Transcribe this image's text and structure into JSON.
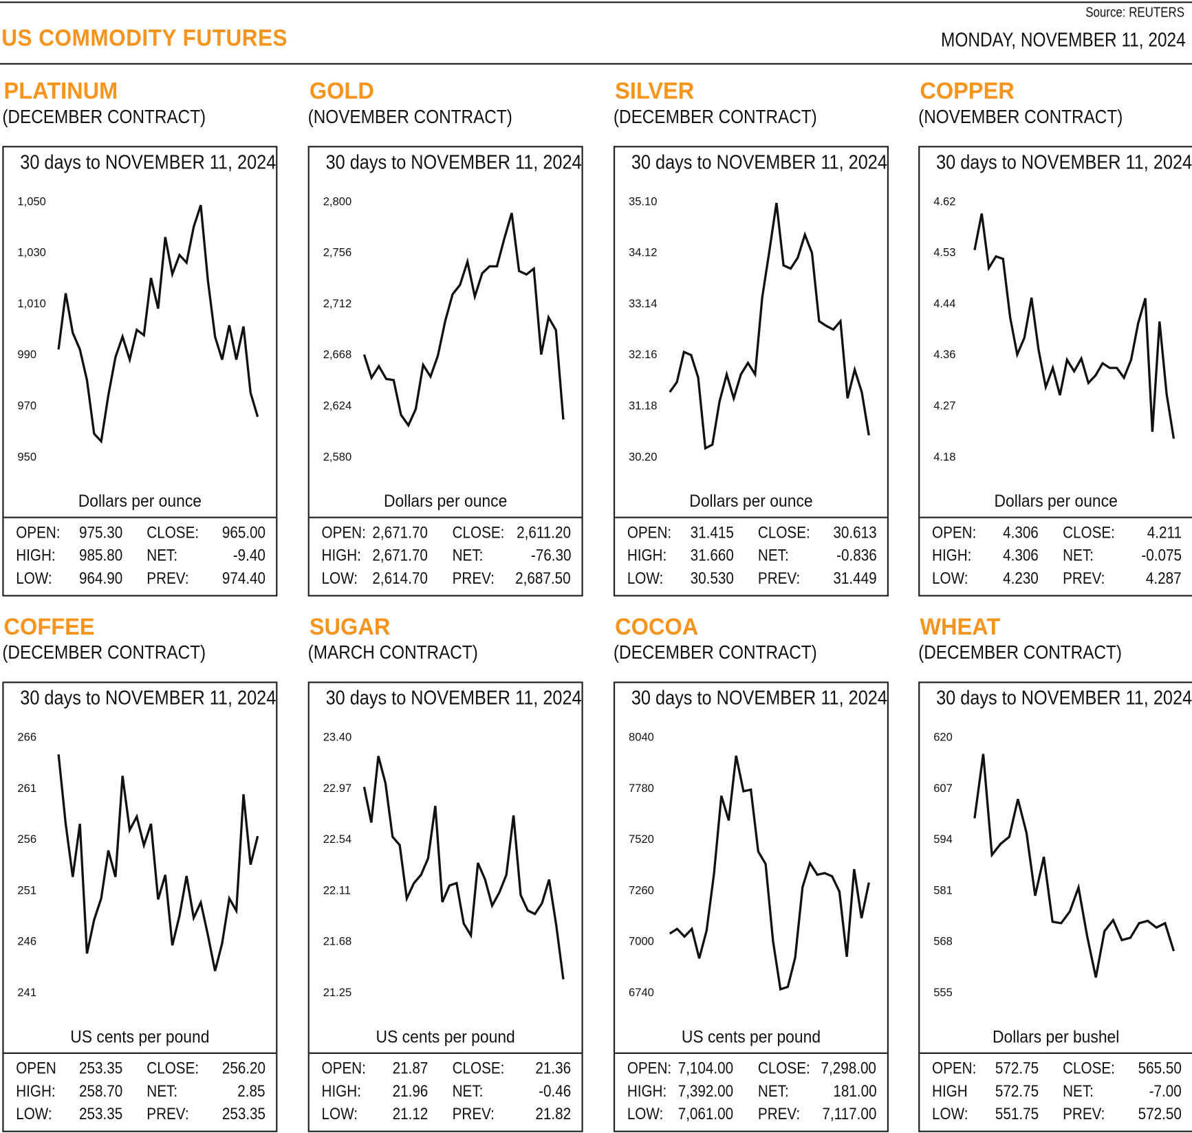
{
  "header": {
    "title": "US COMMODITY FUTURES",
    "source": "Source: REUTERS",
    "date": "MONDAY, NOVEMBER 11, 2024"
  },
  "colors": {
    "accent": "#f7941d",
    "line": "#111111"
  },
  "chart_data": [
    {
      "type": "line",
      "name": "PLATINUM",
      "contract": "(DECEMBER CONTRACT)",
      "title": "30 days to NOVEMBER 11, 2024",
      "ylabel": "Dollars per ounce",
      "yticks": [
        "1,050",
        "1,030",
        "1,010",
        "990",
        "970",
        "950"
      ],
      "ylim": [
        950,
        1050
      ],
      "grid": false,
      "values": [
        992,
        1014,
        998.5,
        992,
        980,
        959,
        956,
        974,
        989,
        997,
        988,
        999.7,
        997.6,
        1020,
        1008,
        1036,
        1021.5,
        1029,
        1026,
        1040,
        1048.5,
        1019,
        997,
        988,
        1001.5,
        988,
        1001,
        975,
        965.6
      ],
      "stats": {
        "OPEN:": "975.30",
        "HIGH:": "985.80",
        "LOW:": "964.90",
        "CLOSE:": "965.00",
        "NET:": "-9.40",
        "PREV:": "974.40"
      },
      "stat_labels": [
        "OPEN:",
        "HIGH:",
        "LOW:",
        "CLOSE:",
        "NET:",
        "PREV:"
      ]
    },
    {
      "type": "line",
      "name": "GOLD",
      "contract": "(NOVEMBER CONTRACT)",
      "title": "30 days to NOVEMBER 11, 2024",
      "ylabel": "Dollars per ounce",
      "yticks": [
        "2,800",
        "2,756",
        "2,712",
        "2,668",
        "2,624",
        "2,580"
      ],
      "ylim": [
        2580,
        2800
      ],
      "grid": false,
      "values": [
        2668,
        2648,
        2658,
        2647,
        2646,
        2616,
        2607,
        2621,
        2659,
        2649,
        2667,
        2697,
        2720,
        2728,
        2748,
        2718,
        2738,
        2744,
        2744,
        2768,
        2790,
        2740,
        2737,
        2742,
        2668,
        2700,
        2689,
        2612
      ],
      "stats": {
        "OPEN:": "2,671.70",
        "HIGH:": "2,671.70",
        "LOW:": "2,614.70",
        "CLOSE:": "2,611.20",
        "NET:": "-76.30",
        "PREV:": "2,687.50"
      },
      "stat_labels": [
        "OPEN:",
        "HIGH:",
        "LOW:",
        "CLOSE:",
        "NET:",
        "PREV:"
      ]
    },
    {
      "type": "line",
      "name": "SILVER",
      "contract": "(DECEMBER CONTRACT)",
      "title": "30 days to NOVEMBER 11, 2024",
      "ylabel": "Dollars per ounce",
      "yticks": [
        "35.10",
        "34.12",
        "33.14",
        "32.16",
        "31.18",
        "30.20"
      ],
      "ylim": [
        30.2,
        35.1
      ],
      "grid": false,
      "values": [
        31.44,
        31.63,
        32.21,
        32.15,
        31.72,
        30.36,
        30.43,
        31.26,
        31.78,
        31.32,
        31.78,
        32.0,
        31.78,
        33.25,
        34.14,
        35.07,
        33.87,
        33.81,
        34.02,
        34.46,
        34.11,
        32.8,
        32.71,
        32.64,
        32.8,
        31.32,
        31.87,
        31.44,
        30.61
      ],
      "stats": {
        "OPEN:": "31.415",
        "HIGH:": "31.660",
        "LOW:": "30.530",
        "CLOSE:": "30.613",
        "NET:": "-0.836",
        "PREV:": "31.449"
      },
      "stat_labels": [
        "OPEN:",
        "HIGH:",
        "LOW:",
        "CLOSE:",
        "NET:",
        "PREV:"
      ]
    },
    {
      "type": "line",
      "name": "COPPER",
      "contract": "(NOVEMBER CONTRACT)",
      "title": "30 days to NOVEMBER 11, 2024",
      "ylabel": "Dollars per ounce",
      "yticks": [
        "4.62",
        "4.53",
        "4.44",
        "4.36",
        "4.27",
        "4.18"
      ],
      "ylim": [
        4.18,
        4.62
      ],
      "grid": false,
      "values": [
        4.536,
        4.599,
        4.505,
        4.525,
        4.521,
        4.42,
        4.356,
        4.385,
        4.454,
        4.364,
        4.3,
        4.333,
        4.286,
        4.347,
        4.327,
        4.349,
        4.307,
        4.32,
        4.341,
        4.333,
        4.333,
        4.316,
        4.347,
        4.41,
        4.453,
        4.223,
        4.413,
        4.288,
        4.211
      ],
      "stats": {
        "OPEN:": "4.306",
        "HIGH:": "4.306",
        "LOW:": "4.230",
        "CLOSE:": "4.211",
        "NET:": "-0.075",
        "PREV:": "4.287"
      },
      "stat_labels": [
        "OPEN:",
        "HIGH:",
        "LOW:",
        "CLOSE:",
        "NET:",
        "PREV:"
      ]
    },
    {
      "type": "line",
      "name": "COFFEE",
      "contract": "(DECEMBER CONTRACT)",
      "title": "30 days to NOVEMBER 11, 2024",
      "ylabel": "US cents per pound",
      "yticks": [
        "266",
        "261",
        "256",
        "251",
        "246",
        "241"
      ],
      "ylim": [
        241,
        266
      ],
      "grid": false,
      "values": [
        264.3,
        257.5,
        252.3,
        257.5,
        244.8,
        248.1,
        250.2,
        254.9,
        252.3,
        262.2,
        256.9,
        258.2,
        255.4,
        257.5,
        250.1,
        252.5,
        245.6,
        248.5,
        252.4,
        248.3,
        249.8,
        246.6,
        243.1,
        245.8,
        250.2,
        249.0,
        260.4,
        253.5,
        256.3
      ],
      "stats": {
        "OPEN": "253.35",
        "HIGH:": "258.70",
        "LOW:": "253.35",
        "CLOSE:": "256.20",
        "NET:": "2.85",
        "PREV:": "253.35"
      },
      "stat_labels": [
        "OPEN",
        "HIGH:",
        "LOW:",
        "CLOSE:",
        "NET:",
        "PREV:"
      ]
    },
    {
      "type": "line",
      "name": "SUGAR",
      "contract": "(MARCH CONTRACT)",
      "title": "30 days to NOVEMBER 11, 2024",
      "ylabel": "US cents per pound",
      "yticks": [
        "23.40",
        "22.97",
        "22.54",
        "22.11",
        "21.68",
        "21.25"
      ],
      "ylim": [
        21.25,
        23.4
      ],
      "grid": false,
      "values": [
        22.98,
        22.68,
        23.24,
        23.01,
        22.56,
        22.49,
        22.04,
        22.17,
        22.24,
        22.38,
        22.82,
        22.01,
        22.15,
        22.17,
        21.83,
        21.73,
        22.34,
        22.2,
        21.98,
        22.09,
        22.24,
        22.74,
        22.07,
        21.94,
        21.91,
        22.0,
        22.2,
        21.82,
        21.36
      ],
      "stats": {
        "OPEN:": "21.87",
        "HIGH:": "21.96",
        "LOW:": "21.12",
        "CLOSE:": "21.36",
        "NET:": "-0.46",
        "PREV:": "21.82"
      },
      "stat_labels": [
        "OPEN:",
        "HIGH:",
        "LOW:",
        "CLOSE:",
        "NET:",
        "PREV:"
      ]
    },
    {
      "type": "line",
      "name": "COCOA",
      "contract": "(DECEMBER CONTRACT)",
      "title": "30 days to NOVEMBER 11, 2024",
      "ylabel": "US cents per pound",
      "yticks": [
        "8040",
        "7780",
        "7520",
        "7260",
        "7000",
        "6740"
      ],
      "ylim": [
        6740,
        8040
      ],
      "grid": false,
      "values": [
        7039,
        7063,
        7024,
        7063,
        6913,
        7055,
        7343,
        7741,
        7615,
        7945,
        7764,
        7772,
        7457,
        7394,
        7000,
        6756,
        6768,
        6917,
        7276,
        7398,
        7339,
        7347,
        7331,
        7253,
        6921,
        7367,
        7118,
        7299
      ],
      "stats": {
        "OPEN:": "7,104.00",
        "HIGH:": "7,392.00",
        "LOW:": "7,061.00",
        "CLOSE:": "7,298.00",
        "NET:": "181.00",
        "PREV:": "7,117.00"
      },
      "stat_labels": [
        "OPEN:",
        "HIGH:",
        "LOW:",
        "CLOSE:",
        "NET:",
        "PREV:"
      ]
    },
    {
      "type": "line",
      "name": "WHEAT",
      "contract": "(DECEMBER CONTRACT)",
      "title": "30 days to NOVEMBER 11, 2024",
      "ylabel": "Dollars per bushel",
      "yticks": [
        "620",
        "607",
        "594",
        "581",
        "568",
        "555"
      ],
      "ylim": [
        555,
        620
      ],
      "grid": false,
      "values": [
        599.3,
        615.7,
        590,
        592.8,
        594.6,
        604.2,
        595.6,
        579.6,
        589.5,
        573,
        572.6,
        575.6,
        581.7,
        569.3,
        558.8,
        570.6,
        573.4,
        568.3,
        568.9,
        572.6,
        573.2,
        571.5,
        572.6,
        565.5
      ],
      "stats": {
        "OPEN:": "572.75",
        "HIGH": "572.75",
        "LOW:": "551.75",
        "CLOSE:": "565.50",
        "NET:": "-7.00",
        "PREV:": "572.50"
      },
      "stat_labels": [
        "OPEN:",
        "HIGH",
        "LOW:",
        "CLOSE:",
        "NET:",
        "PREV:"
      ]
    }
  ]
}
